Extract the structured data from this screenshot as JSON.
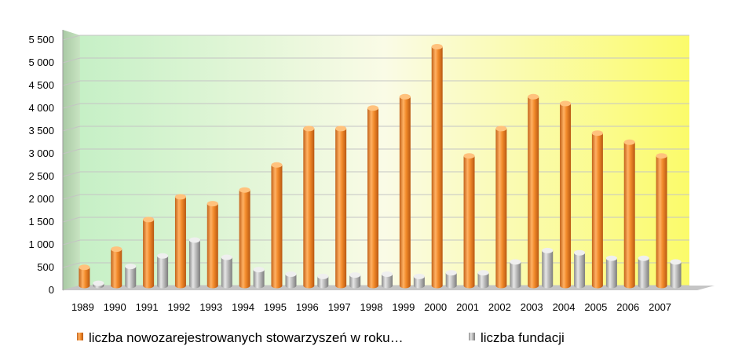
{
  "chart_data": {
    "type": "bar",
    "categories": [
      "1989",
      "1990",
      "1991",
      "1992",
      "1993",
      "1994",
      "1995",
      "1996",
      "1997",
      "1998",
      "1999",
      "2000",
      "2001",
      "2002",
      "2003",
      "2004",
      "2005",
      "2006",
      "2007"
    ],
    "series": [
      {
        "name": "liczba nowozarejestrowanych stowarzyszeń w roku…",
        "color": "#f28a2a",
        "values": [
          400,
          800,
          1450,
          1950,
          1800,
          2100,
          2650,
          3450,
          3450,
          3900,
          4150,
          5250,
          2850,
          3450,
          4150,
          4000,
          3350,
          3150,
          2850
        ]
      },
      {
        "name": "liczba fundacji",
        "color": "#b8b8b8",
        "values": [
          50,
          420,
          650,
          1000,
          620,
          350,
          250,
          200,
          230,
          250,
          200,
          280,
          280,
          520,
          770,
          720,
          600,
          600,
          520
        ]
      }
    ],
    "yticks": [
      "0",
      "500",
      "1 000",
      "1 500",
      "2 000",
      "2 500",
      "3 000",
      "3 500",
      "4 000",
      "4 500",
      "5 000",
      "5 500"
    ],
    "ylim": [
      0,
      5500
    ],
    "grid": true,
    "legend_position": "bottom"
  }
}
